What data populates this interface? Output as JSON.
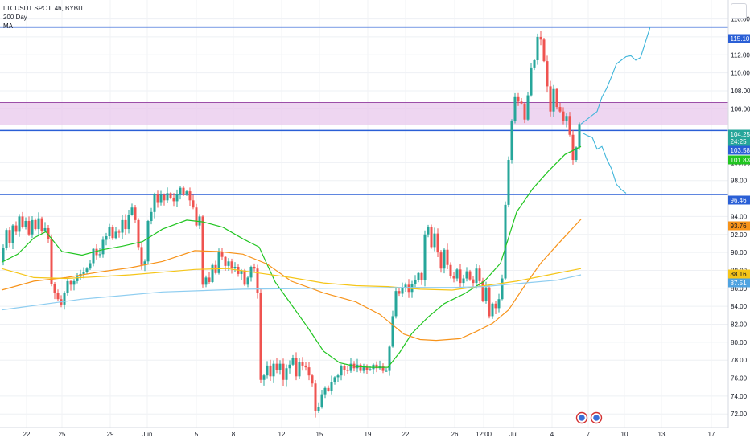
{
  "legend": {
    "symbol": "LTCUSDT SPOT, 4h, BYBIT",
    "ind1": "200 Day",
    "ind2": "MA"
  },
  "price_badges": [
    {
      "value": "115.10",
      "color": "#2a5fd6"
    },
    {
      "value": "104.25",
      "color": "#26a69a"
    },
    {
      "value": "24:25",
      "color": "#26a69a"
    },
    {
      "value": "103.58",
      "color": "#2a5fd6"
    },
    {
      "value": "101.83",
      "color": "#21c521"
    },
    {
      "value": "96.46",
      "color": "#2a5fd6"
    },
    {
      "value": "93.76",
      "color": "#f7931a"
    },
    {
      "value": "88.16",
      "color": "#f5c518"
    },
    {
      "value": "87.51",
      "color": "#4fa3e0"
    }
  ],
  "chart_data": {
    "type": "candlestick",
    "title": "LTCUSDT SPOT, 4h, BYBIT",
    "ylim": [
      70.5,
      116.5
    ],
    "y_ticks": [
      "72.00",
      "74.00",
      "76.00",
      "78.00",
      "80.00",
      "82.00",
      "84.00",
      "86.00",
      "88.00",
      "90.00",
      "92.00",
      "94.00",
      "98.00",
      "100.00",
      "106.00",
      "108.00",
      "110.00",
      "112.00",
      "114.00",
      "116.00"
    ],
    "x_ticks": [
      "22",
      "25",
      "29",
      "Jun",
      "5",
      "8",
      "12",
      "15",
      "19",
      "22",
      "26",
      "12:00",
      "Jul",
      "4",
      "7",
      "10",
      "13",
      "17"
    ],
    "candle_path": [
      [
        0,
        89
      ],
      [
        4,
        90.5
      ],
      [
        8,
        92.5
      ],
      [
        12,
        91
      ],
      [
        16,
        93
      ],
      [
        20,
        92.3
      ],
      [
        24,
        94
      ],
      [
        28,
        92.8
      ],
      [
        32,
        93.5
      ],
      [
        36,
        92
      ],
      [
        40,
        93.6
      ],
      [
        44,
        92.6
      ],
      [
        48,
        93.8
      ],
      [
        52,
        92.4
      ],
      [
        56,
        92.7
      ],
      [
        60,
        91.5
      ],
      [
        64,
        86.5
      ],
      [
        68,
        85.5
      ],
      [
        72,
        84.8
      ],
      [
        76,
        84.2
      ],
      [
        80,
        85.5
      ],
      [
        84,
        86.8
      ],
      [
        88,
        86.4
      ],
      [
        92,
        86.8
      ],
      [
        96,
        87.3
      ],
      [
        100,
        87.6
      ],
      [
        104,
        87.8
      ],
      [
        108,
        88.2
      ],
      [
        112,
        88.8
      ],
      [
        116,
        90.4
      ],
      [
        120,
        89.7
      ],
      [
        124,
        89.8
      ],
      [
        128,
        91.4
      ],
      [
        132,
        91.8
      ],
      [
        136,
        92.8
      ],
      [
        140,
        91.6
      ],
      [
        144,
        92.3
      ],
      [
        148,
        92.2
      ],
      [
        152,
        93.6
      ],
      [
        156,
        92.6
      ],
      [
        160,
        94.2
      ],
      [
        164,
        95
      ],
      [
        168,
        93.6
      ],
      [
        172,
        90.6
      ],
      [
        176,
        88.6
      ],
      [
        180,
        89
      ],
      [
        184,
        93.5
      ],
      [
        188,
        94.5
      ],
      [
        192,
        96.5
      ],
      [
        196,
        95.6
      ],
      [
        200,
        96.4
      ],
      [
        204,
        95.8
      ],
      [
        208,
        96.6
      ],
      [
        212,
        96.1
      ],
      [
        216,
        95.7
      ],
      [
        220,
        96.5
      ],
      [
        224,
        97.2
      ],
      [
        228,
        96.4
      ],
      [
        232,
        96.8
      ],
      [
        236,
        95.8
      ],
      [
        240,
        95
      ],
      [
        244,
        93
      ],
      [
        248,
        94
      ],
      [
        252,
        86.4
      ],
      [
        256,
        87.2
      ],
      [
        260,
        86.7
      ],
      [
        264,
        88.6
      ],
      [
        268,
        87.7
      ],
      [
        272,
        90.1
      ],
      [
        276,
        89.5
      ],
      [
        280,
        88.5
      ],
      [
        284,
        89
      ],
      [
        288,
        88.3
      ],
      [
        292,
        88.4
      ],
      [
        296,
        87.6
      ],
      [
        300,
        88
      ],
      [
        304,
        86.4
      ],
      [
        308,
        87.2
      ],
      [
        312,
        88.4
      ],
      [
        316,
        88.2
      ],
      [
        320,
        85.5
      ],
      [
        324,
        75.8
      ],
      [
        328,
        76.3
      ],
      [
        332,
        77.4
      ],
      [
        336,
        76.2
      ],
      [
        340,
        77.6
      ],
      [
        344,
        76.9
      ],
      [
        348,
        77.6
      ],
      [
        352,
        75.8
      ],
      [
        356,
        77.1
      ],
      [
        360,
        77.5
      ],
      [
        364,
        78.2
      ],
      [
        368,
        76.2
      ],
      [
        372,
        77.8
      ],
      [
        376,
        77.4
      ],
      [
        380,
        77.2
      ],
      [
        384,
        76.3
      ],
      [
        388,
        75.4
      ],
      [
        392,
        72.3
      ],
      [
        396,
        72.8
      ],
      [
        400,
        74.2
      ],
      [
        404,
        74.9
      ],
      [
        408,
        74.6
      ],
      [
        412,
        75.6
      ],
      [
        416,
        76.1
      ],
      [
        420,
        76.3
      ],
      [
        424,
        77.3
      ],
      [
        428,
        76.9
      ],
      [
        432,
        76.8
      ],
      [
        436,
        77.6
      ],
      [
        440,
        77.1
      ],
      [
        444,
        77.5
      ],
      [
        448,
        76.8
      ],
      [
        452,
        77.2
      ],
      [
        456,
        76.9
      ],
      [
        460,
        77
      ],
      [
        464,
        77.5
      ],
      [
        468,
        77.1
      ],
      [
        472,
        77.3
      ],
      [
        476,
        76.8
      ],
      [
        480,
        76.8
      ],
      [
        484,
        79.5
      ],
      [
        488,
        82.9
      ],
      [
        492,
        85.7
      ],
      [
        496,
        85.4
      ],
      [
        500,
        86.1
      ],
      [
        504,
        86.4
      ],
      [
        508,
        85.6
      ],
      [
        512,
        86.5
      ],
      [
        516,
        86.9
      ],
      [
        520,
        87.7
      ],
      [
        524,
        86.9
      ],
      [
        528,
        92
      ],
      [
        532,
        92.8
      ],
      [
        536,
        90.6
      ],
      [
        540,
        92.1
      ],
      [
        544,
        90
      ],
      [
        548,
        88.2
      ],
      [
        552,
        90.3
      ],
      [
        556,
        88.6
      ],
      [
        560,
        87.4
      ],
      [
        564,
        87.1
      ],
      [
        568,
        88.1
      ],
      [
        572,
        86.6
      ],
      [
        576,
        87.1
      ],
      [
        580,
        87.9
      ],
      [
        584,
        87
      ],
      [
        588,
        86.6
      ],
      [
        592,
        88.2
      ],
      [
        596,
        86.8
      ],
      [
        600,
        84.6
      ],
      [
        604,
        86.1
      ],
      [
        608,
        82.9
      ],
      [
        612,
        84.3
      ],
      [
        616,
        83.8
      ],
      [
        620,
        84.8
      ],
      [
        624,
        87.1
      ],
      [
        628,
        95.3
      ],
      [
        632,
        100.3
      ],
      [
        636,
        104.6
      ],
      [
        640,
        107.3
      ],
      [
        644,
        106.8
      ],
      [
        648,
        106.6
      ],
      [
        652,
        104.8
      ],
      [
        656,
        107.5
      ],
      [
        660,
        110.6
      ],
      [
        664,
        111.4
      ],
      [
        668,
        114
      ],
      [
        672,
        113.7
      ],
      [
        676,
        111.3
      ],
      [
        680,
        108.5
      ],
      [
        684,
        105.7
      ],
      [
        688,
        108.2
      ],
      [
        692,
        106.2
      ],
      [
        696,
        105.7
      ],
      [
        700,
        104.6
      ],
      [
        704,
        105.2
      ],
      [
        708,
        103.1
      ],
      [
        712,
        100.3
      ],
      [
        716,
        101.7
      ],
      [
        720,
        104.3
      ]
    ],
    "series": [
      {
        "name": "SMA fast",
        "color": "#21c521",
        "path": [
          [
            0,
            88.9
          ],
          [
            20,
            89.8
          ],
          [
            40,
            91.6
          ],
          [
            55,
            92.3
          ],
          [
            75,
            90.1
          ],
          [
            100,
            89.7
          ],
          [
            125,
            90.3
          ],
          [
            150,
            90.7
          ],
          [
            175,
            91.2
          ],
          [
            200,
            92.6
          ],
          [
            230,
            93.6
          ],
          [
            250,
            93.4
          ],
          [
            275,
            92.8
          ],
          [
            300,
            91.5
          ],
          [
            320,
            90.6
          ],
          [
            340,
            86.7
          ],
          [
            360,
            84.2
          ],
          [
            380,
            81.7
          ],
          [
            400,
            79
          ],
          [
            420,
            77.7
          ],
          [
            440,
            77.3
          ],
          [
            460,
            77.2
          ],
          [
            480,
            77.2
          ],
          [
            495,
            78.9
          ],
          [
            510,
            81
          ],
          [
            530,
            82.8
          ],
          [
            550,
            84.3
          ],
          [
            575,
            85.4
          ],
          [
            600,
            86.8
          ],
          [
            620,
            88.8
          ],
          [
            640,
            94.5
          ],
          [
            660,
            97.1
          ],
          [
            680,
            99.1
          ],
          [
            700,
            100.9
          ],
          [
            720,
            101.8
          ]
        ]
      },
      {
        "name": "SMA mid",
        "color": "#f7931a",
        "path": [
          [
            0,
            85.8
          ],
          [
            40,
            86.8
          ],
          [
            80,
            87.2
          ],
          [
            120,
            87.8
          ],
          [
            160,
            88.3
          ],
          [
            200,
            89
          ],
          [
            240,
            90.2
          ],
          [
            270,
            90.1
          ],
          [
            300,
            89.8
          ],
          [
            330,
            88.7
          ],
          [
            360,
            86.8
          ],
          [
            400,
            85.5
          ],
          [
            440,
            84.5
          ],
          [
            470,
            83.1
          ],
          [
            500,
            80.9
          ],
          [
            520,
            80.3
          ],
          [
            540,
            80.2
          ],
          [
            570,
            80.4
          ],
          [
            590,
            81.2
          ],
          [
            610,
            82.1
          ],
          [
            630,
            83.6
          ],
          [
            650,
            86.3
          ],
          [
            670,
            88.8
          ],
          [
            690,
            90.8
          ],
          [
            720,
            93.7
          ]
        ]
      },
      {
        "name": "SMA slow",
        "color": "#f5c518",
        "path": [
          [
            0,
            88.2
          ],
          [
            40,
            87.2
          ],
          [
            80,
            87.1
          ],
          [
            120,
            87.3
          ],
          [
            160,
            87.5
          ],
          [
            200,
            87.8
          ],
          [
            240,
            88.1
          ],
          [
            280,
            88.2
          ],
          [
            320,
            87.7
          ],
          [
            360,
            87.2
          ],
          [
            400,
            86.6
          ],
          [
            440,
            86.3
          ],
          [
            480,
            86.2
          ],
          [
            520,
            85.9
          ],
          [
            560,
            85.8
          ],
          [
            600,
            86.3
          ],
          [
            640,
            86.8
          ],
          [
            680,
            87.5
          ],
          [
            720,
            88.2
          ]
        ]
      },
      {
        "name": "200 Day",
        "color": "#8ecdf0",
        "path": [
          [
            0,
            83.6
          ],
          [
            100,
            84.8
          ],
          [
            200,
            85.6
          ],
          [
            300,
            85.9
          ],
          [
            400,
            86
          ],
          [
            500,
            86.1
          ],
          [
            560,
            86.1
          ],
          [
            600,
            86.2
          ],
          [
            650,
            86.6
          ],
          [
            690,
            86.9
          ],
          [
            720,
            87.5
          ]
        ]
      },
      {
        "name": "projection",
        "color": "#3fb5da",
        "path": [
          [
            720,
            104.3
          ],
          [
            730,
            105
          ],
          [
            740,
            105.7
          ],
          [
            746,
            107.3
          ],
          [
            752,
            108.3
          ],
          [
            758,
            109.6
          ],
          [
            764,
            111
          ],
          [
            770,
            111.4
          ],
          [
            776,
            111.8
          ],
          [
            782,
            111.9
          ],
          [
            788,
            111.4
          ],
          [
            794,
            111.7
          ],
          [
            800,
            113.4
          ],
          [
            806,
            115.1
          ]
        ]
      },
      {
        "name": "projection",
        "color": "#3fb5da",
        "path": [
          [
            722,
            103.3
          ],
          [
            728,
            103
          ],
          [
            734,
            102.8
          ],
          [
            740,
            101.5
          ],
          [
            746,
            101.8
          ],
          [
            752,
            100.4
          ],
          [
            758,
            99.3
          ],
          [
            764,
            97.6
          ],
          [
            770,
            97
          ],
          [
            776,
            96.6
          ]
        ]
      }
    ],
    "h_lines": [
      {
        "y": 115.1,
        "color": "#2a5fd6"
      },
      {
        "y": 103.58,
        "color": "#2a5fd6"
      },
      {
        "y": 96.46,
        "color": "#2a5fd6"
      }
    ],
    "zone": {
      "y_top": 106.7,
      "y_bottom": 104.2,
      "fill": "#e8c8ec",
      "border": "#9c4fa8"
    },
    "events": [
      723,
      741
    ]
  }
}
